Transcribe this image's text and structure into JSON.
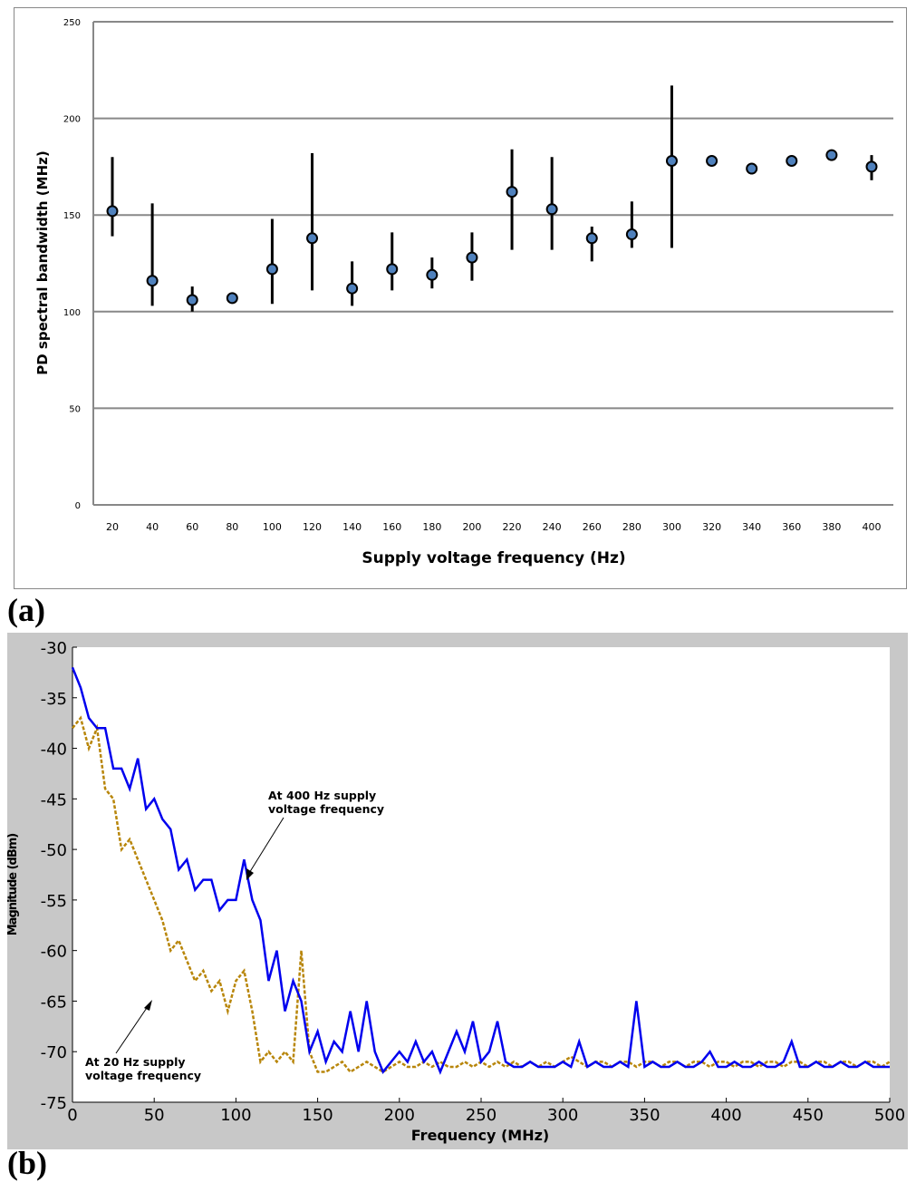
{
  "labels": {
    "a": "(a)",
    "b": "(b)"
  },
  "chart_data": [
    {
      "type": "scatter",
      "title": "",
      "xlabel": "Supply voltage frequency (Hz)",
      "ylabel": "PD spectral bandwidth (MHz)",
      "ylim": [
        0,
        250
      ],
      "yticks": [
        0,
        50,
        100,
        150,
        200,
        250
      ],
      "grid": "horizontal",
      "categories": [
        "20",
        "40",
        "60",
        "80",
        "100",
        "120",
        "140",
        "160",
        "180",
        "200",
        "220",
        "240",
        "260",
        "280",
        "300",
        "320",
        "340",
        "360",
        "380",
        "400"
      ],
      "values": [
        152,
        116,
        106,
        107,
        122,
        138,
        112,
        122,
        119,
        128,
        162,
        153,
        138,
        140,
        178,
        178,
        174,
        178,
        181,
        175
      ],
      "err_low": [
        139,
        103,
        100,
        105,
        104,
        111,
        103,
        111,
        112,
        116,
        132,
        132,
        126,
        133,
        133,
        178,
        171,
        178,
        181,
        168
      ],
      "err_high": [
        180,
        156,
        113,
        110,
        148,
        182,
        126,
        141,
        128,
        141,
        184,
        180,
        144,
        157,
        217,
        178,
        175,
        178,
        181,
        181
      ],
      "marker_color": "#4f81bd"
    },
    {
      "type": "line",
      "xlabel": "Frequency (MHz)",
      "ylabel": "Magnitude (dBm)",
      "xlim": [
        0,
        500
      ],
      "ylim": [
        -75,
        -30
      ],
      "xticks": [
        0,
        50,
        100,
        150,
        200,
        250,
        300,
        350,
        400,
        450,
        500
      ],
      "yticks": [
        -30,
        -35,
        -40,
        -45,
        -50,
        -55,
        -60,
        -65,
        -70,
        -75
      ],
      "x_step": 5,
      "series": [
        {
          "name": "At 400 Hz supply voltage frequency",
          "color": "#0000ee",
          "style": "solid",
          "values": [
            -32,
            -34,
            -37,
            -38,
            -38,
            -42,
            -42,
            -44,
            -41,
            -46,
            -45,
            -47,
            -48,
            -52,
            -51,
            -54,
            -53,
            -53,
            -56,
            -55,
            -55,
            -51,
            -55,
            -57,
            -63,
            -60,
            -66,
            -63,
            -65,
            -70,
            -68,
            -71,
            -69,
            -70,
            -66,
            -70,
            -65,
            -70,
            -72,
            -71,
            -70,
            -71,
            -69,
            -71,
            -70,
            -72,
            -70,
            -68,
            -70,
            -67,
            -71,
            -70,
            -67,
            -71,
            -71.5,
            -71.5,
            -71,
            -71.5,
            -71.5,
            -71.5,
            -71,
            -71.5,
            -69,
            -71.5,
            -71,
            -71.5,
            -71.5,
            -71,
            -71.5,
            -65,
            -71.5,
            -71,
            -71.5,
            -71.5,
            -71,
            -71.5,
            -71.5,
            -71,
            -70,
            -71.5,
            -71.5,
            -71,
            -71.5,
            -71.5,
            -71,
            -71.5,
            -71.5,
            -71,
            -69,
            -71.5,
            -71.5,
            -71,
            -71.5,
            -71.5,
            -71,
            -71.5,
            -71.5,
            -71,
            -71.5,
            -71.5,
            -71.5
          ]
        },
        {
          "name": "At 20 Hz supply voltage frequency",
          "color": "#b8860b",
          "style": "dashed",
          "values": [
            -38,
            -37,
            -40,
            -38,
            -44,
            -45,
            -50,
            -49,
            -51,
            -53,
            -55,
            -57,
            -60,
            -59,
            -61,
            -63,
            -62,
            -64,
            -63,
            -66,
            -63,
            -62,
            -66,
            -71,
            -70,
            -71,
            -70,
            -71,
            -60,
            -70,
            -72,
            -72,
            -71.5,
            -71,
            -72,
            -71.5,
            -71,
            -71.5,
            -72,
            -71.5,
            -71,
            -71.5,
            -71.5,
            -71,
            -71.5,
            -71,
            -71.5,
            -71.5,
            -71,
            -71.5,
            -71,
            -71.5,
            -71,
            -71.5,
            -71,
            -71.5,
            -71,
            -71.5,
            -71,
            -71.5,
            -71,
            -70.5,
            -71,
            -71.5,
            -71,
            -71,
            -71.5,
            -71,
            -71,
            -71.5,
            -71,
            -71,
            -71.5,
            -71,
            -71,
            -71.5,
            -71,
            -71,
            -71.5,
            -71,
            -71,
            -71.5,
            -71,
            -71,
            -71.5,
            -71,
            -71,
            -71.5,
            -71,
            -71,
            -71.5,
            -71,
            -71,
            -71.5,
            -71,
            -71,
            -71.5,
            -71,
            -71,
            -71.5,
            -71
          ]
        }
      ],
      "annotations": [
        "At 400 Hz supply",
        "voltage frequency",
        "At 20 Hz supply",
        "voltage frequency"
      ]
    }
  ]
}
